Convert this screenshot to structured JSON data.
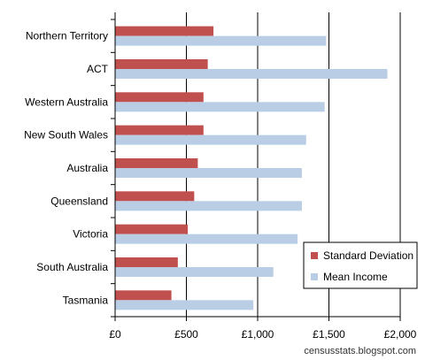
{
  "chart_data": {
    "type": "bar",
    "orientation": "horizontal",
    "categories": [
      "Northern Territory",
      "ACT",
      "Western Australia",
      "New South Wales",
      "Australia",
      "Queensland",
      "Victoria",
      "South Australia",
      "Tasmania"
    ],
    "series": [
      {
        "name": "Standard Deviation",
        "color": "#c0504d",
        "values": [
          690,
          650,
          620,
          620,
          580,
          555,
          510,
          440,
          395
        ]
      },
      {
        "name": "Mean Income",
        "color": "#b9cde5",
        "values": [
          1480,
          1910,
          1470,
          1340,
          1310,
          1310,
          1280,
          1110,
          970
        ]
      }
    ],
    "xlim": [
      0,
      2000
    ],
    "xticks": [
      0,
      500,
      1000,
      1500,
      2000
    ],
    "xtick_labels": [
      "£0",
      "£500",
      "£1,000",
      "£1,500",
      "£2,000"
    ],
    "grid": "vertical",
    "legend_position": "bottom-right",
    "title": "",
    "xlabel": "",
    "ylabel": ""
  },
  "footer": {
    "source_text": "censusstats.blogspot.com"
  }
}
